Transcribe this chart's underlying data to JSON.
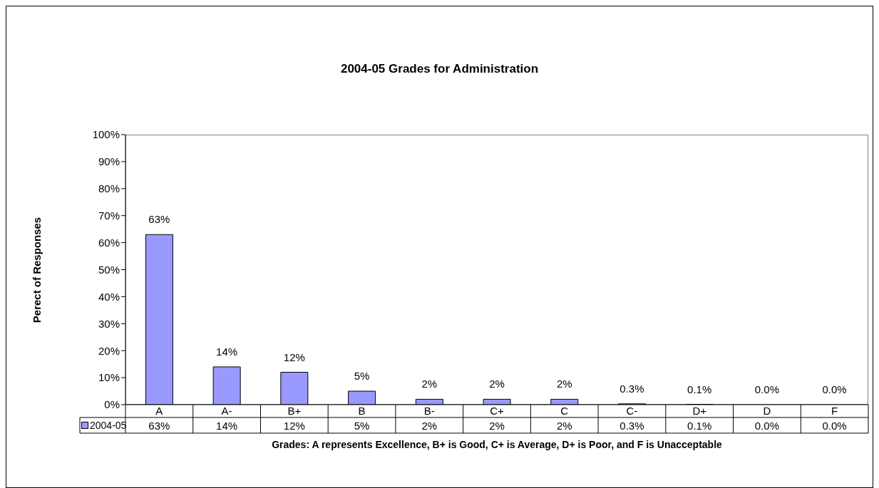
{
  "chart_data": {
    "type": "bar",
    "title": "2004-05 Grades for Administration",
    "xlabel": "Grades: A represents Excellence,  B+ is Good, C+ is Average, D+ is Poor, and F is Unacceptable",
    "ylabel": "Perect of Responses",
    "categories": [
      "A",
      "A-",
      "B+",
      "B",
      "B-",
      "C+",
      "C",
      "C-",
      "D+",
      "D",
      "F"
    ],
    "series": [
      {
        "name": "2004-05",
        "color": "#9999ff",
        "values": [
          63,
          14,
          12,
          5,
          2,
          2,
          2,
          0.3,
          0.1,
          0,
          0
        ],
        "value_labels": [
          "63%",
          "14%",
          "12%",
          "5%",
          "2%",
          "2%",
          "2%",
          "0.3%",
          "0.1%",
          "0.0%",
          "0.0%"
        ]
      }
    ],
    "ylim": [
      0,
      100
    ],
    "yticks": [
      {
        "value": 0,
        "label": "0%"
      },
      {
        "value": 10,
        "label": "10%"
      },
      {
        "value": 20,
        "label": "20%"
      },
      {
        "value": 30,
        "label": "30%"
      },
      {
        "value": 40,
        "label": "40%"
      },
      {
        "value": 50,
        "label": "50%"
      },
      {
        "value": 60,
        "label": "60%"
      },
      {
        "value": 70,
        "label": "70%"
      },
      {
        "value": 80,
        "label": "80%"
      },
      {
        "value": 90,
        "label": "90%"
      },
      {
        "value": 100,
        "label": "100%"
      }
    ],
    "grid": false,
    "legend": "bottom"
  }
}
